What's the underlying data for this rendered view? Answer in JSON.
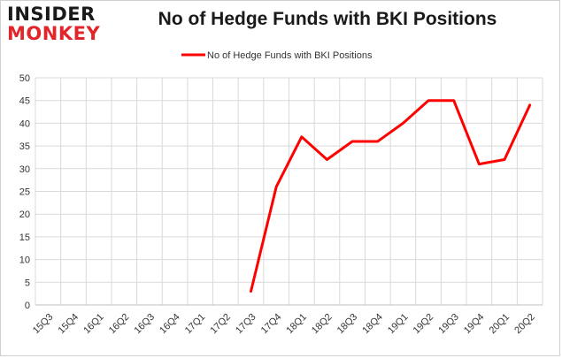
{
  "logo": {
    "line1": "INSIDER",
    "line2": "MONKEY"
  },
  "colors": {
    "series": "#ff0000",
    "grid": "#d9d9d9",
    "brand_red": "#e0262b"
  },
  "chart_data": {
    "type": "line",
    "title": "No of Hedge Funds with BKI Positions",
    "xlabel": "",
    "ylabel": "",
    "categories": [
      "15Q3",
      "15Q4",
      "16Q1",
      "16Q2",
      "16Q3",
      "16Q4",
      "17Q1",
      "17Q2",
      "17Q3",
      "17Q4",
      "18Q1",
      "18Q2",
      "18Q3",
      "18Q4",
      "19Q1",
      "19Q2",
      "19Q3",
      "19Q4",
      "20Q1",
      "20Q2"
    ],
    "series": [
      {
        "name": "No of Hedge Funds with BKI Positions",
        "values": [
          null,
          null,
          null,
          null,
          null,
          null,
          null,
          null,
          3,
          26,
          37,
          32,
          36,
          36,
          40,
          45,
          45,
          31,
          32,
          44
        ]
      }
    ],
    "ylim": [
      0,
      50
    ],
    "yticks": [
      0,
      5,
      10,
      15,
      20,
      25,
      30,
      35,
      40,
      45,
      50
    ],
    "grid": true,
    "legend_position": "top-center"
  }
}
